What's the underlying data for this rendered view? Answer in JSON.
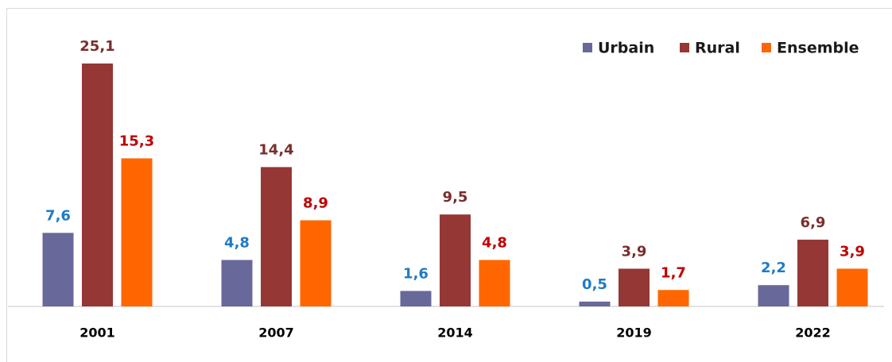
{
  "chart_data": {
    "type": "bar",
    "categories": [
      "2001",
      "2007",
      "2014",
      "2019",
      "2022"
    ],
    "series": [
      {
        "name": "Urbain",
        "color": "#68689a",
        "label_color": "#1f7bc4",
        "values": [
          7.6,
          4.8,
          1.6,
          0.5,
          2.2
        ],
        "value_labels": [
          "7,6",
          "4,8",
          "1,6",
          "0,5",
          "2,2"
        ]
      },
      {
        "name": "Rural",
        "color": "#953735",
        "label_color": "#7a2e2c",
        "values": [
          25.1,
          14.4,
          9.5,
          3.9,
          6.9
        ],
        "value_labels": [
          "25,1",
          "14,4",
          "9,5",
          "3,9",
          "6,9"
        ]
      },
      {
        "name": "Ensemble",
        "color": "#ff6600",
        "label_color": "#c00000",
        "values": [
          15.3,
          8.9,
          4.8,
          1.7,
          3.9
        ],
        "value_labels": [
          "15,3",
          "8,9",
          "4,8",
          "1,7",
          "3,9"
        ]
      }
    ],
    "legend": "top-right"
  }
}
